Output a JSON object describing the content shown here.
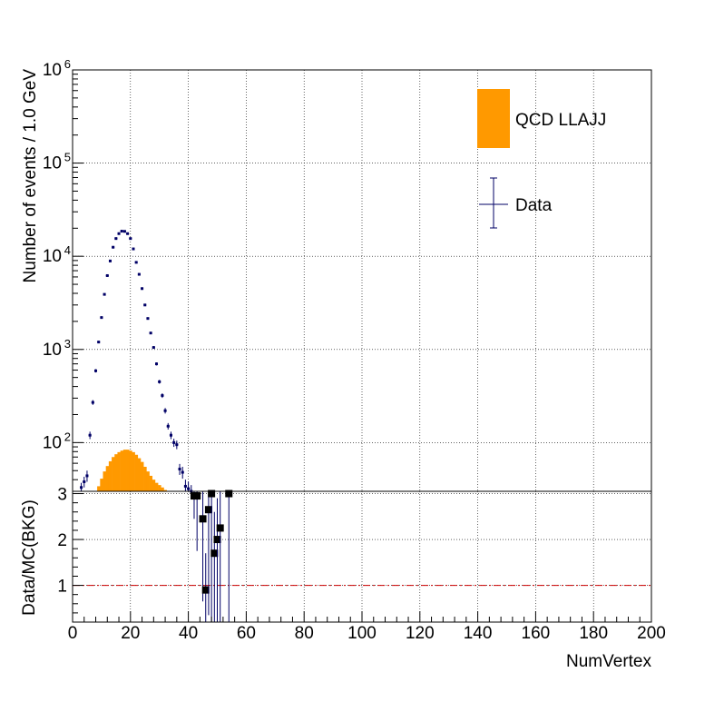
{
  "chart_data": [
    {
      "type": "bar",
      "panel": "main",
      "xlabel": "",
      "ylabel": "Number of events / 1.0 GeV",
      "y_scale": "log",
      "ylim": [
        30,
        1000000
      ],
      "xlim": [
        0,
        200
      ],
      "y_ticks": [
        {
          "value": 100,
          "label": "10",
          "exp": "2"
        },
        {
          "value": 1000,
          "label": "10",
          "exp": "3"
        },
        {
          "value": 10000,
          "label": "10",
          "exp": "4"
        },
        {
          "value": 100000,
          "label": "10",
          "exp": "5"
        },
        {
          "value": 1000000,
          "label": "10",
          "exp": "6"
        }
      ],
      "grid": true,
      "legend_placement": "top-right",
      "legend": [
        {
          "label": "QCD LLAJJ",
          "kind": "fill",
          "color": "#ff9900"
        },
        {
          "label": "Data",
          "kind": "errorbar",
          "color": "#000066"
        }
      ],
      "series": [
        {
          "name": "QCD LLAJJ",
          "kind": "histogram",
          "color": "#ff9900",
          "bin_width": 1,
          "x": [
            9,
            10,
            11,
            12,
            13,
            14,
            15,
            16,
            17,
            18,
            19,
            20,
            21,
            22,
            23,
            24,
            25,
            26,
            27,
            28,
            29,
            30,
            31,
            32
          ],
          "values": [
            34,
            41,
            49,
            56,
            63,
            70,
            75,
            79,
            82,
            84,
            84,
            82,
            79,
            74,
            68,
            62,
            55,
            49,
            44,
            40,
            37,
            35,
            33,
            31
          ]
        },
        {
          "name": "Data",
          "kind": "points_with_errors",
          "color": "#000066",
          "x": [
            3,
            4,
            5,
            6,
            7,
            8,
            9,
            10,
            11,
            12,
            13,
            14,
            15,
            16,
            17,
            18,
            19,
            20,
            21,
            22,
            23,
            24,
            25,
            26,
            27,
            28,
            29,
            30,
            31,
            32,
            33,
            34,
            35,
            36,
            37,
            38,
            39,
            40,
            41
          ],
          "values": [
            33,
            38,
            44,
            120,
            270,
            590,
            1200,
            2200,
            3900,
            6200,
            8900,
            12500,
            15500,
            17500,
            18600,
            18500,
            17500,
            15500,
            12000,
            8600,
            6400,
            4500,
            3000,
            2150,
            1500,
            1050,
            700,
            450,
            320,
            220,
            150,
            120,
            100,
            95,
            52,
            48,
            34,
            32,
            30
          ],
          "errors": [
            4,
            5,
            6,
            11,
            16,
            24,
            35,
            47,
            62,
            79,
            94,
            112,
            125,
            132,
            136,
            136,
            132,
            125,
            110,
            93,
            80,
            67,
            55,
            46,
            39,
            32,
            26,
            21,
            18,
            15,
            12,
            11,
            10,
            10,
            7,
            7,
            6,
            6,
            5
          ]
        }
      ]
    },
    {
      "type": "scatter",
      "panel": "ratio",
      "xlabel": "NumVertex",
      "ylabel": "Data/MC(BKG)",
      "xlim": [
        0,
        200
      ],
      "ylim": [
        0.2,
        3.05
      ],
      "x_ticks": [
        0,
        20,
        40,
        60,
        80,
        100,
        120,
        140,
        160,
        180,
        200
      ],
      "y_ticks": [
        1,
        2,
        3
      ],
      "grid": true,
      "reference_line": {
        "y": 1,
        "color": "#cc0000",
        "style": "dash-dot"
      },
      "series": [
        {
          "name": "",
          "color": "#000000",
          "error_color": "#000066",
          "x": [
            42,
            43,
            45,
            46,
            47,
            48,
            49,
            50,
            51,
            54
          ],
          "values": [
            2.95,
            2.95,
            2.45,
            0.9,
            2.65,
            3.0,
            1.7,
            2.0,
            2.25,
            3.0
          ],
          "err_low": [
            0.5,
            1.2,
            1.8,
            0.7,
            2.3,
            2.8,
            1.5,
            1.8,
            2.05,
            2.8
          ],
          "err_high": [
            0.8,
            0.8,
            0.9,
            0.8,
            0.9,
            0.9,
            0.9,
            0.9,
            0.9,
            0.8
          ]
        }
      ]
    }
  ]
}
